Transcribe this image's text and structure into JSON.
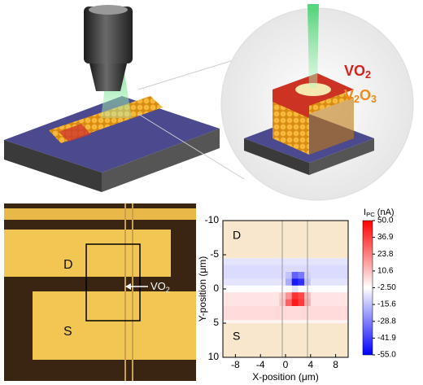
{
  "illustration": {
    "film_labels": [
      {
        "segments": [
          "VO",
          "2"
        ]
      },
      {
        "segments": [
          "V",
          "2",
          "O",
          "3"
        ]
      }
    ]
  },
  "micrograph": {
    "electrode_top": "D",
    "electrode_bottom": "S",
    "wire_label": {
      "segments": [
        "VO",
        "2"
      ]
    }
  },
  "chart_data": {
    "type": "heatmap",
    "xlabel": "X-position (μm)",
    "ylabel": "Y-position (μm)",
    "colorbar_label": {
      "segments": [
        "I",
        "PC",
        " (nA)"
      ]
    },
    "region_labels": [
      "D",
      "S"
    ],
    "xlim": [
      -10,
      10
    ],
    "xticks": [
      -8,
      -4,
      0,
      4,
      8
    ],
    "ylim": [
      -10,
      10
    ],
    "yticks": [
      -10,
      -5,
      0,
      5,
      10
    ],
    "y_inverted": true,
    "x": [
      -9.5,
      -8.5,
      -7.5,
      -6.5,
      -5.5,
      -4.5,
      -3.5,
      -2.5,
      -1.5,
      -0.5,
      0.5,
      1.5,
      2.5,
      3.5,
      4.5,
      5.5,
      6.5,
      7.5,
      8.5,
      9.5
    ],
    "y": [
      -4,
      -3,
      -2,
      -1,
      0,
      1,
      2,
      3,
      4
    ],
    "values": [
      [
        -8,
        -8,
        -8,
        -8,
        -8,
        -8,
        -8,
        -8,
        -8,
        -8,
        -8,
        -8,
        -8,
        -8,
        -8,
        -8,
        -8,
        -8,
        -8,
        -8
      ],
      [
        -10,
        -10,
        -10,
        -10,
        -10,
        -10,
        -10,
        -10,
        -10,
        -10,
        -10,
        -10,
        -10,
        -10,
        -10,
        -10,
        -10,
        -10,
        -10,
        -10
      ],
      [
        -10,
        -10,
        -10,
        -10,
        -10,
        -10,
        -10,
        -10,
        -10,
        -10,
        -15,
        -35,
        -30,
        -12,
        -10,
        -10,
        -10,
        -10,
        -10,
        -10
      ],
      [
        -8,
        -8,
        -8,
        -8,
        -8,
        -8,
        -8,
        -8,
        -8,
        -8,
        -20,
        -50,
        -45,
        -15,
        -8,
        -8,
        -8,
        -8,
        -8,
        -8
      ],
      [
        -3,
        -3,
        -3,
        -3,
        -3,
        -3,
        -3,
        -3,
        -3,
        -3,
        -3,
        -8,
        -3,
        -3,
        -3,
        -3,
        -3,
        -3,
        -3,
        -3
      ],
      [
        3,
        3,
        3,
        3,
        3,
        3,
        3,
        3,
        3,
        8,
        20,
        40,
        35,
        12,
        3,
        3,
        3,
        3,
        3,
        3
      ],
      [
        3,
        3,
        3,
        3,
        3,
        3,
        3,
        3,
        3,
        10,
        30,
        45,
        38,
        15,
        3,
        3,
        3,
        3,
        3,
        3
      ],
      [
        5,
        5,
        5,
        5,
        5,
        5,
        5,
        5,
        5,
        5,
        5,
        5,
        5,
        5,
        5,
        5,
        5,
        5,
        5,
        5
      ],
      [
        5,
        5,
        5,
        5,
        5,
        5,
        5,
        5,
        5,
        5,
        5,
        5,
        5,
        5,
        5,
        5,
        5,
        5,
        5,
        5
      ]
    ],
    "colormap": [
      "#0000ff",
      "#ffffff",
      "#ff0000"
    ],
    "clim": [
      -55,
      50
    ],
    "cticks": [
      {
        "value": 50,
        "label": "50.0"
      },
      36.9,
      23.8,
      10.6,
      {
        "value": -2.5,
        "label": "-2.50"
      },
      -15.6,
      -28.8,
      -41.9,
      {
        "value": -55,
        "label": "-55.0"
      }
    ]
  }
}
